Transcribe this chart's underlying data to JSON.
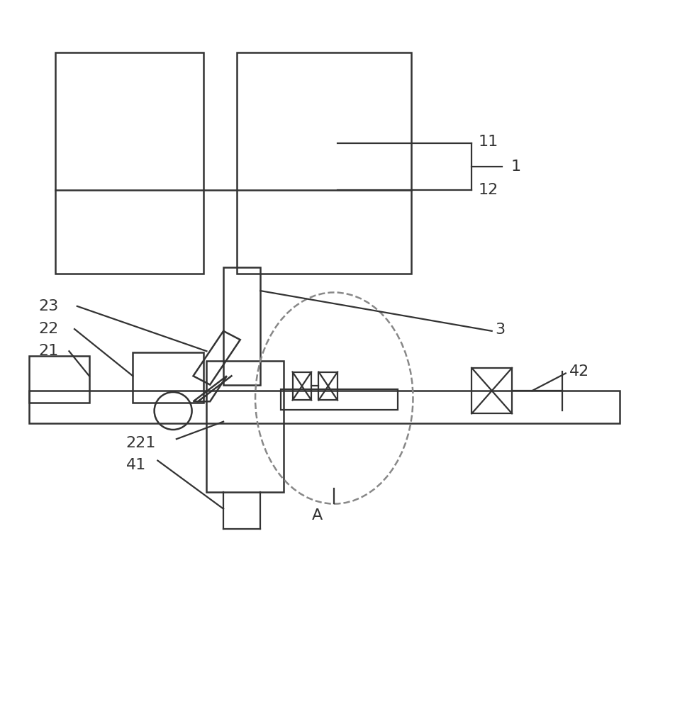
{
  "bg_color": "#ffffff",
  "line_color": "#333333",
  "line_width": 1.8,
  "fig_width": 9.52,
  "fig_height": 10.0
}
